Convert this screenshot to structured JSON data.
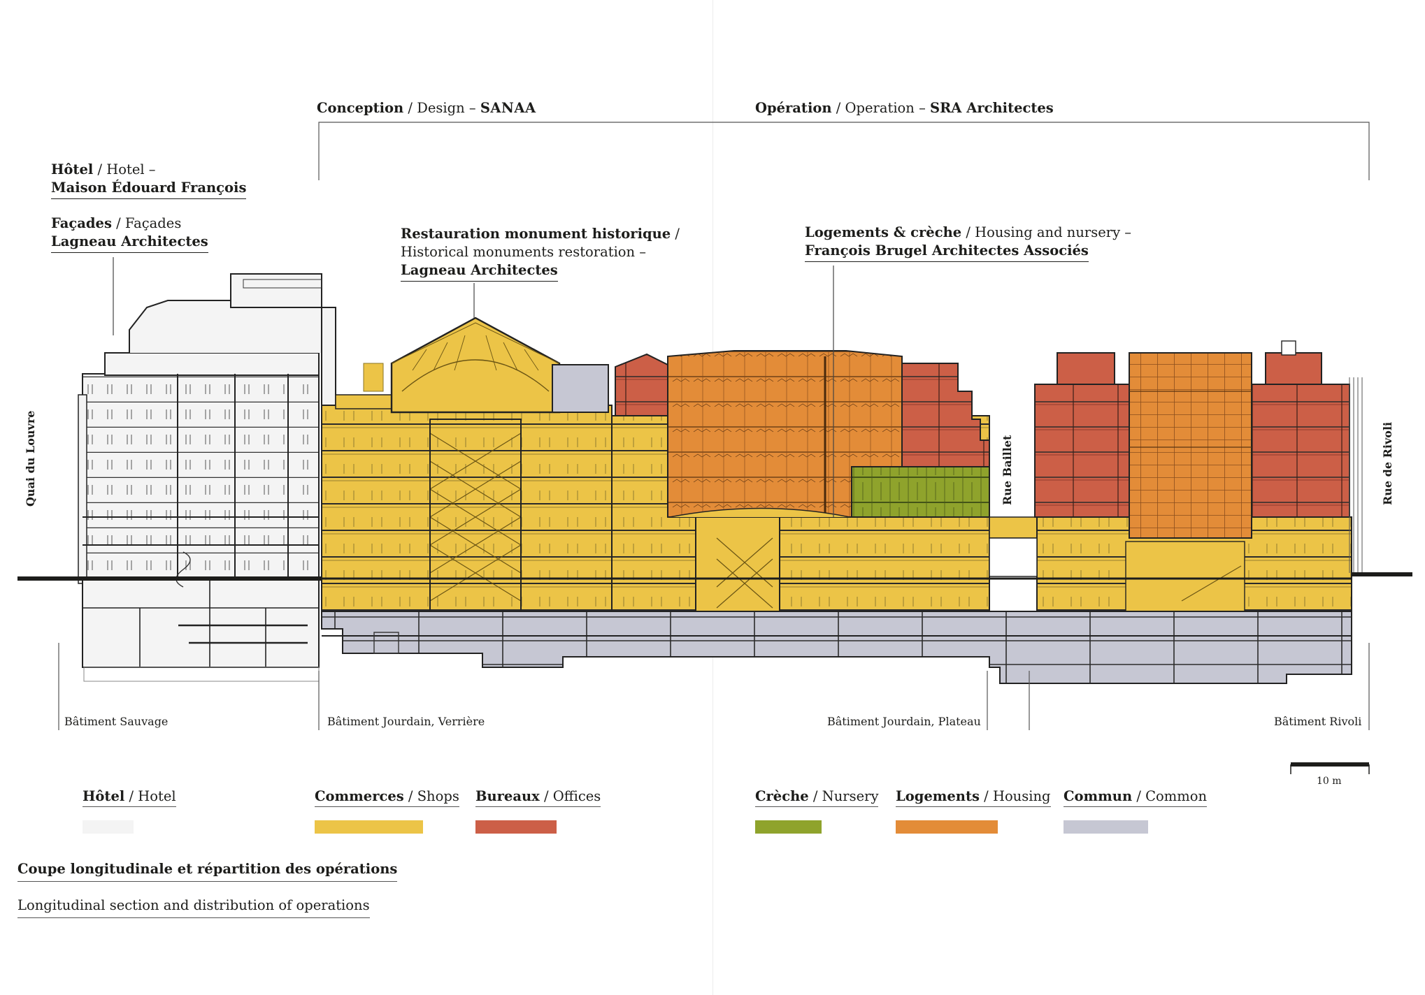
{
  "headings": {
    "conception": {
      "bold": "Conception",
      "light": "Design",
      "firm": "SANAA"
    },
    "operation": {
      "bold": "Opération",
      "light": "Operation",
      "firm": "SRA Architectes"
    }
  },
  "annotations": {
    "hotel": {
      "line1_bold": "Hôtel",
      "line1_light": "Hotel –",
      "line2": "Maison Édouard François"
    },
    "facades": {
      "line1_bold": "Façades",
      "line1_light": "Façades",
      "line2": "Lagneau Architectes"
    },
    "restauration": {
      "line1_bold": "Restauration monument historique",
      "line1_light": "/",
      "line2": "Historical monuments restoration –",
      "line3": "Lagneau Architectes"
    },
    "logements": {
      "line1_bold": "Logements & crèche",
      "line1_light": "Housing and nursery –",
      "line2": "François Brugel Architectes Associés"
    }
  },
  "buildings": {
    "sauvage": "Bâtiment Sauvage",
    "verriere": "Bâtiment Jourdain, Verrière",
    "plateau": "Bâtiment Jourdain, Plateau",
    "rivoli": "Bâtiment Rivoli"
  },
  "streets": {
    "quai": "Quai du Louvre",
    "baillet": "Rue Baillet",
    "rivoli": "Rue de Rivoli"
  },
  "scale": {
    "label": "10 m"
  },
  "legend": [
    {
      "fr": "Hôtel",
      "en": "Hotel",
      "color": "#f4f4f4"
    },
    {
      "fr": "Commerces",
      "en": "Shops",
      "color": "#ecc447"
    },
    {
      "fr": "Bureaux",
      "en": "Offices",
      "color": "#cc5f47"
    },
    {
      "fr": "Crèche",
      "en": "Nursery",
      "color": "#8fa32c"
    },
    {
      "fr": "Logements",
      "en": "Housing",
      "color": "#e38c38"
    },
    {
      "fr": "Commun",
      "en": "Common",
      "color": "#c6c7d3"
    }
  ],
  "caption": {
    "fr": "Coupe longitudinale et répartition des opérations",
    "en": "Longitudinal section and distribution of operations"
  },
  "colors": {
    "hotel": "#f4f4f4",
    "shops": "#ecc447",
    "offices": "#cc5f47",
    "nursery": "#8fa32c",
    "housing": "#e38c38",
    "common": "#c6c7d3",
    "ink": "#1d1d1b"
  }
}
